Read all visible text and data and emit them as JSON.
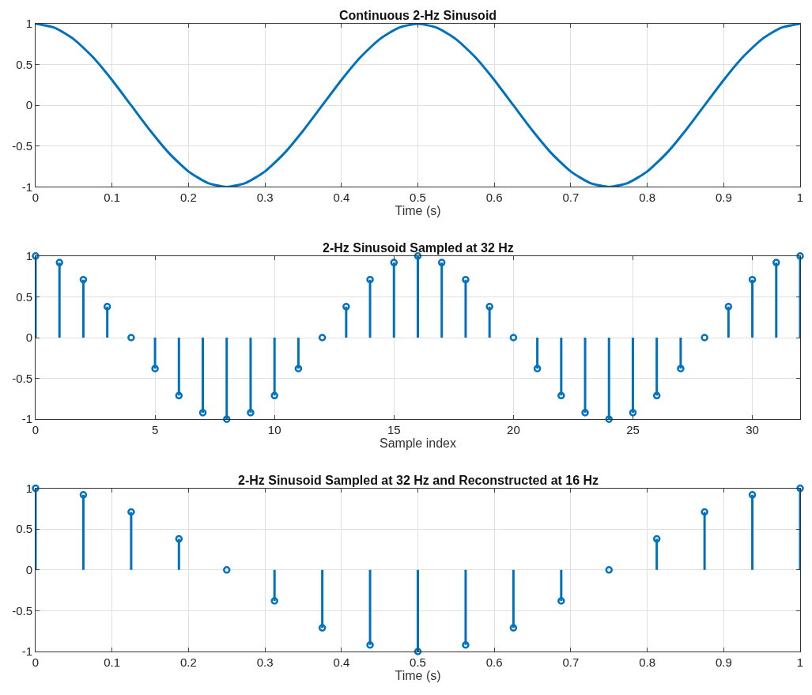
{
  "chart_data": [
    {
      "type": "line",
      "title": "Continuous 2-Hz Sinusoid",
      "xlabel": "Time (s)",
      "x": [
        0,
        0.025,
        0.05,
        0.075,
        0.1,
        0.125,
        0.15,
        0.175,
        0.2,
        0.225,
        0.25,
        0.275,
        0.3,
        0.325,
        0.35,
        0.375,
        0.4,
        0.425,
        0.45,
        0.475,
        0.5,
        0.525,
        0.55,
        0.575,
        0.6,
        0.625,
        0.65,
        0.675,
        0.7,
        0.725,
        0.75,
        0.775,
        0.8,
        0.825,
        0.85,
        0.875,
        0.9,
        0.925,
        0.95,
        0.975,
        1
      ],
      "series": [
        {
          "color": "#0072bd",
          "values": [
            1,
            0.95,
            0.81,
            0.59,
            0.31,
            0,
            -0.31,
            -0.59,
            -0.81,
            -0.95,
            -1,
            -0.95,
            -0.81,
            -0.59,
            -0.31,
            0,
            0.31,
            0.59,
            0.81,
            0.95,
            1,
            0.95,
            0.81,
            0.59,
            0.31,
            0,
            -0.31,
            -0.59,
            -0.81,
            -0.95,
            -1,
            -0.95,
            -0.81,
            -0.59,
            -0.31,
            0,
            0.31,
            0.59,
            0.81,
            0.95,
            1
          ]
        }
      ],
      "xlim": [
        0,
        1
      ],
      "xticks": [
        0,
        0.1,
        0.2,
        0.3,
        0.4,
        0.5,
        0.6,
        0.7,
        0.8,
        0.9,
        1
      ],
      "ylim": [
        -1,
        1
      ],
      "yticks": [
        -1,
        -0.5,
        0,
        0.5,
        1
      ],
      "grid": true,
      "line_style": "solid",
      "marker": "none"
    },
    {
      "type": "lollipop",
      "title": "2-Hz Sinusoid Sampled at 32 Hz",
      "xlabel": "Sample index",
      "x": [
        0,
        1,
        2,
        3,
        4,
        5,
        6,
        7,
        8,
        9,
        10,
        11,
        12,
        13,
        14,
        15,
        16,
        17,
        18,
        19,
        20,
        21,
        22,
        23,
        24,
        25,
        26,
        27,
        28,
        29,
        30,
        31,
        32
      ],
      "series": [
        {
          "color": "#0072bd",
          "values": [
            1,
            0.92,
            0.71,
            0.38,
            0,
            -0.38,
            -0.71,
            -0.92,
            -1,
            -0.92,
            -0.71,
            -0.38,
            0,
            0.38,
            0.71,
            0.92,
            1,
            0.92,
            0.71,
            0.38,
            0,
            -0.38,
            -0.71,
            -0.92,
            -1,
            -0.92,
            -0.71,
            -0.38,
            0,
            0.38,
            0.71,
            0.92,
            1
          ]
        }
      ],
      "xlim": [
        0,
        32
      ],
      "xticks": [
        0,
        5,
        10,
        15,
        20,
        25,
        30
      ],
      "ylim": [
        -1,
        1
      ],
      "yticks": [
        -1,
        -0.5,
        0,
        0.5,
        1
      ],
      "grid": true,
      "marker": "circle"
    },
    {
      "type": "lollipop",
      "title": "2-Hz Sinusoid Sampled at 32 Hz and Reconstructed at 16 Hz",
      "xlabel": "Time (s)",
      "x": [
        0,
        0.0625,
        0.125,
        0.1875,
        0.25,
        0.3125,
        0.375,
        0.4375,
        0.5,
        0.5625,
        0.625,
        0.6875,
        0.75,
        0.8125,
        0.875,
        0.9375,
        1
      ],
      "series": [
        {
          "color": "#0072bd",
          "values": [
            1,
            0.92,
            0.71,
            0.38,
            0,
            -0.38,
            -0.71,
            -0.92,
            -1,
            -0.92,
            -0.71,
            -0.38,
            0,
            0.38,
            0.71,
            0.92,
            1
          ]
        }
      ],
      "xlim": [
        0,
        1
      ],
      "xticks": [
        0,
        0.1,
        0.2,
        0.3,
        0.4,
        0.5,
        0.6,
        0.7,
        0.8,
        0.9,
        1
      ],
      "ylim": [
        -1,
        1
      ],
      "yticks": [
        -1,
        -0.5,
        0,
        0.5,
        1
      ],
      "grid": true,
      "marker": "circle"
    }
  ]
}
